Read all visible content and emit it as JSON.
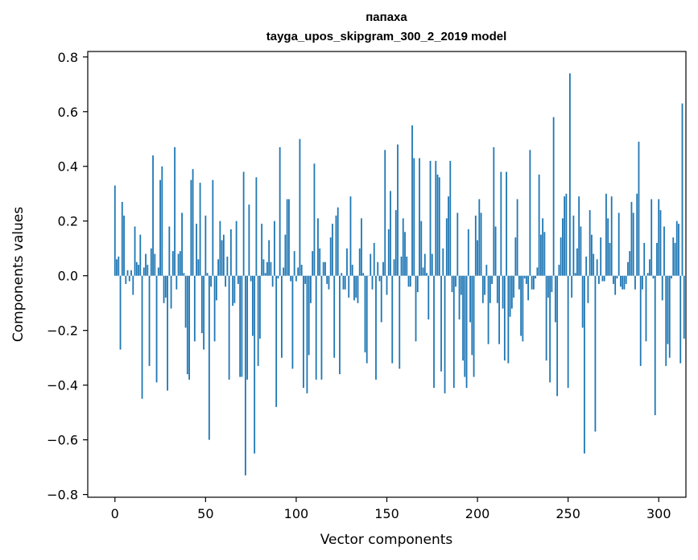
{
  "chart_data": {
    "type": "bar",
    "title_line1": "папаха",
    "title_line2": "tayga_upos_skipgram_300_2_2019 model",
    "xlabel": "Vector components",
    "ylabel": "Components values",
    "xlim": [
      -15,
      315
    ],
    "ylim": [
      -0.81,
      0.82
    ],
    "xticks": [
      0,
      50,
      100,
      150,
      200,
      250,
      300
    ],
    "xtick_labels": [
      "0",
      "50",
      "100",
      "150",
      "200",
      "250",
      "300"
    ],
    "yticks": [
      0.8,
      0.6,
      0.4,
      0.2,
      0.0,
      -0.2,
      -0.4,
      -0.6,
      -0.8
    ],
    "ytick_labels": [
      "0.8",
      "0.6",
      "0.4",
      "0.2",
      "0.0",
      "−0.2",
      "−0.4",
      "−0.6",
      "−0.8"
    ],
    "bar_color": "#1f77b4",
    "values": [
      0.33,
      0.06,
      0.07,
      -0.27,
      0.27,
      0.22,
      -0.03,
      0.02,
      -0.02,
      0.02,
      -0.07,
      0.18,
      0.05,
      0.04,
      0.15,
      -0.45,
      0.03,
      0.08,
      0.04,
      -0.33,
      0.1,
      0.44,
      0.08,
      -0.39,
      0.03,
      0.35,
      0.4,
      -0.1,
      -0.08,
      -0.42,
      0.18,
      -0.12,
      0.09,
      0.47,
      -0.05,
      0.08,
      0.09,
      0.23,
      0.01,
      -0.19,
      -0.36,
      -0.38,
      0.35,
      0.39,
      -0.24,
      0.19,
      0.06,
      0.34,
      -0.21,
      -0.27,
      0.22,
      0.01,
      -0.6,
      -0.04,
      0.35,
      -0.24,
      -0.09,
      0.06,
      0.2,
      0.13,
      0.15,
      -0.04,
      0.07,
      -0.38,
      0.17,
      -0.11,
      -0.1,
      0.2,
      -0.03,
      -0.37,
      -0.37,
      0.38,
      -0.73,
      -0.38,
      0.26,
      -0.02,
      -0.22,
      -0.65,
      0.36,
      -0.33,
      -0.23,
      0.19,
      0.06,
      0.01,
      0.05,
      0.13,
      0.05,
      -0.04,
      0.2,
      -0.48,
      -0.01,
      0.47,
      -0.3,
      0.03,
      0.15,
      0.28,
      0.28,
      -0.02,
      -0.34,
      0.09,
      -0.02,
      0.03,
      0.5,
      0.04,
      -0.41,
      -0.03,
      -0.43,
      -0.29,
      -0.1,
      0.09,
      0.41,
      -0.38,
      0.21,
      0.1,
      -0.38,
      0.05,
      0.05,
      -0.03,
      -0.05,
      0.14,
      0.19,
      -0.3,
      0.22,
      0.25,
      -0.36,
      0.01,
      -0.05,
      -0.05,
      0.1,
      -0.08,
      0.29,
      0.04,
      -0.09,
      -0.08,
      -0.1,
      0.1,
      0.21,
      0.01,
      -0.28,
      -0.32,
      0.0,
      0.08,
      -0.05,
      0.12,
      -0.38,
      0.05,
      -0.02,
      -0.17,
      0.05,
      0.46,
      -0.07,
      0.17,
      0.31,
      -0.32,
      0.06,
      0.24,
      0.48,
      -0.34,
      0.07,
      0.21,
      0.16,
      0.07,
      -0.04,
      -0.04,
      0.55,
      0.43,
      -0.24,
      -0.06,
      0.43,
      0.2,
      0.03,
      0.08,
      0.01,
      -0.16,
      0.42,
      0.08,
      -0.41,
      0.42,
      0.37,
      0.36,
      -0.35,
      0.1,
      -0.43,
      0.21,
      0.29,
      0.42,
      -0.06,
      -0.41,
      -0.04,
      0.23,
      -0.16,
      -0.07,
      -0.31,
      -0.37,
      -0.41,
      0.17,
      -0.17,
      -0.29,
      -0.37,
      0.22,
      0.13,
      0.28,
      0.23,
      -0.1,
      -0.07,
      0.04,
      -0.25,
      -0.1,
      -0.03,
      0.47,
      0.18,
      -0.1,
      -0.25,
      0.38,
      -0.12,
      -0.31,
      0.38,
      -0.32,
      -0.15,
      -0.12,
      -0.08,
      0.14,
      0.28,
      -0.05,
      -0.22,
      -0.24,
      -0.01,
      -0.03,
      -0.09,
      0.46,
      -0.05,
      -0.05,
      -0.01,
      0.03,
      0.37,
      0.15,
      0.21,
      0.16,
      -0.31,
      -0.08,
      -0.39,
      -0.06,
      0.58,
      -0.17,
      -0.44,
      0.04,
      0.14,
      0.21,
      0.29,
      0.3,
      -0.41,
      0.74,
      -0.08,
      0.22,
      0.01,
      0.1,
      0.29,
      0.18,
      -0.19,
      -0.65,
      0.07,
      -0.1,
      0.24,
      0.15,
      0.08,
      -0.57,
      0.06,
      -0.03,
      0.14,
      -0.02,
      -0.02,
      0.3,
      0.21,
      0.12,
      0.29,
      -0.03,
      -0.07,
      -0.01,
      0.23,
      -0.04,
      -0.05,
      -0.05,
      -0.03,
      0.05,
      0.09,
      0.27,
      0.23,
      -0.05,
      0.3,
      0.49,
      -0.33,
      -0.05,
      0.12,
      -0.24,
      0.01,
      0.06,
      0.28,
      -0.01,
      -0.51,
      0.12,
      0.28,
      0.24,
      -0.09,
      0.18,
      -0.33,
      -0.25,
      -0.3,
      -0.01,
      0.14,
      0.12,
      0.2,
      0.19,
      -0.32,
      0.63,
      -0.23
    ]
  }
}
